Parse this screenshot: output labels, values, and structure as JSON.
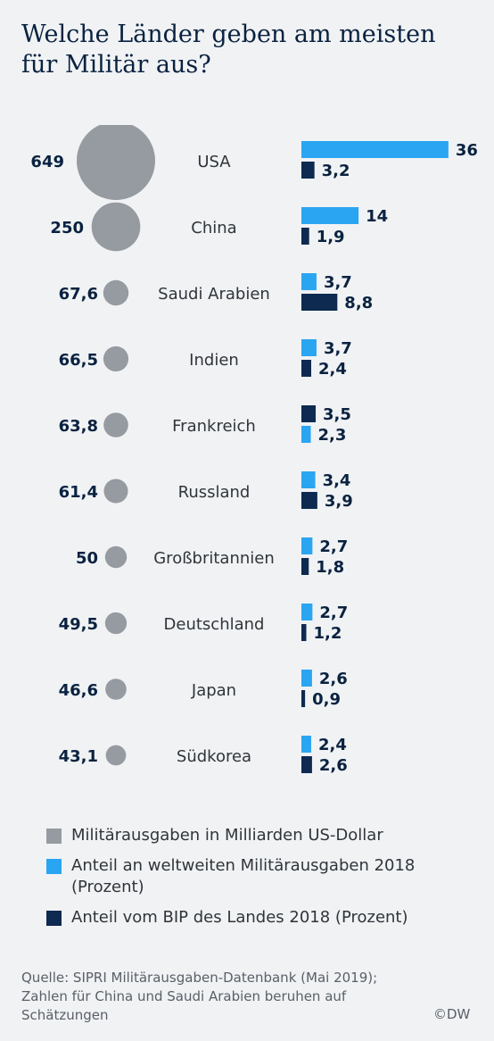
{
  "title": "Welche Länder geben am meisten für Militär aus?",
  "colors": {
    "spending": "#969aa1",
    "world_share": "#2aa5f2",
    "gdp_share": "#0e2a50",
    "value_text": "#0a2240",
    "label_text": "#30353a"
  },
  "chart_data": {
    "type": "bar",
    "categories": [
      "USA",
      "China",
      "Saudi Arabien",
      "Indien",
      "Frankreich",
      "Russland",
      "Großbritannien",
      "Deutschland",
      "Japan",
      "Südkorea"
    ],
    "series": [
      {
        "name": "Militärausgaben in Milliarden US-Dollar",
        "values": [
          649,
          250,
          67.6,
          66.5,
          63.8,
          61.4,
          50,
          49.5,
          46.6,
          43.1
        ],
        "labels": [
          "649",
          "250",
          "67,6",
          "66,5",
          "63,8",
          "61,4",
          "50",
          "49,5",
          "46,6",
          "43,1"
        ]
      },
      {
        "name": "Anteil an weltweiten Militärausgaben 2018 (Prozent)",
        "values": [
          36,
          14,
          3.7,
          3.7,
          2.3,
          3.4,
          2.7,
          2.7,
          2.6,
          2.4
        ],
        "labels": [
          "36",
          "14",
          "3,7",
          "3,7",
          "2,3",
          "3,4",
          "2,7",
          "2,7",
          "2,6",
          "2,4"
        ]
      },
      {
        "name": "Anteil vom BIP des Landes 2018 (Prozent)",
        "values": [
          3.2,
          1.9,
          8.8,
          2.4,
          3.5,
          3.9,
          1.8,
          1.2,
          0.9,
          2.6
        ],
        "labels": [
          "3,2",
          "1,9",
          "8,8",
          "2,4",
          "3,5",
          "3,9",
          "1,8",
          "1,2",
          "0,9",
          "2,6"
        ]
      }
    ],
    "bar_order": [
      "world_gdp",
      "world_gdp",
      "world_gdp",
      "world_gdp",
      "gdp_world",
      "world_gdp",
      "world_gdp",
      "world_gdp",
      "world_gdp",
      "world_gdp"
    ]
  },
  "legend": {
    "spending": "Militärausgaben in Milliarden US-Dollar",
    "world_share": "Anteil an weltweiten Militärausgaben 2018 (Prozent)",
    "gdp_share": "Anteil vom BIP des Landes 2018 (Prozent)"
  },
  "source": "Quelle: SIPRI Militärausgaben-Datenbank (Mai 2019); Zahlen für China und Saudi Arabien beruhen auf Schätzungen",
  "logo": "©DW"
}
